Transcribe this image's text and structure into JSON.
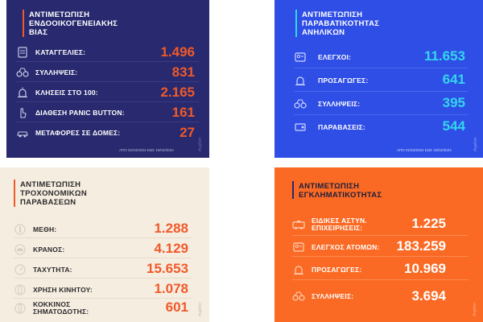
{
  "colors": {
    "navy": "#28296e",
    "blue": "#2f4ee6",
    "cream": "#f6ede1",
    "orange": "#fa6a24",
    "value_orange": "#ef5a2a",
    "value_teal": "#33d6ee"
  },
  "watermark": "#upforr",
  "panels": [
    {
      "title_lines": [
        "ΑΝΤΙΜΕΤΩΠΙΣΗ",
        "ΕΝΔΟΟΙΚΟΓΕΝΕΙΑΚΗΣ",
        "ΒΙΑΣ"
      ],
      "date": "ΑΠΟ 01/04/2024 ΕΩΣ 15/04/2024",
      "items": [
        {
          "label": "ΚΑΤΑΓΓΕΛΙΕΣ:",
          "value": "1.496",
          "icon": "clipboard-icon"
        },
        {
          "label": "ΣΥΛΛΗΨΕΙΣ:",
          "value": "831",
          "icon": "handcuffs-icon"
        },
        {
          "label": "ΚΛΗΣΕΙΣ ΣΤΟ 100:",
          "value": "2.165",
          "icon": "siren-icon"
        },
        {
          "label": "ΔΙΑΘΕΣΗ PANIC BUTTON:",
          "value": "161",
          "icon": "hand-pointer-icon"
        },
        {
          "label": "ΜΕΤΑΦΟΡΕΣ ΣΕ ΔΟΜΕΣ:",
          "value": "27",
          "icon": "car-icon"
        }
      ]
    },
    {
      "title_lines": [
        "ΑΝΤΙΜΕΤΩΠΙΣΗ",
        "ΠΑΡΑΒΑΤΙΚΟΤΗΤΑΣ",
        "ΑΝΗΛΙΚΩΝ"
      ],
      "date": "ΑΠΟ 01/04/2024 ΕΩΣ 15/04/2024",
      "items": [
        {
          "label": "ΕΛΕΓΧΟΙ:",
          "value": "11.653",
          "icon": "id-card-icon"
        },
        {
          "label": "ΠΡΟΣΑΓΩΓΕΣ:",
          "value": "641",
          "icon": "siren-icon"
        },
        {
          "label": "ΣΥΛΛΗΨΕΙΣ:",
          "value": "395",
          "icon": "handcuffs-icon"
        },
        {
          "label": "ΠΑΡΑΒΑΣΕΙΣ:",
          "value": "544",
          "icon": "ticket-icon"
        }
      ]
    },
    {
      "title_lines": [
        "ΑΝΤΙΜΕΤΩΠΙΣΗ",
        "ΤΡΟΧΟΝΟΜΙΚΩΝ",
        "ΠΑΡΑΒΑΣΕΩΝ"
      ],
      "items": [
        {
          "label_lines": [
            "ΜΕΘΗ:"
          ],
          "value": "1.288",
          "icon": "bottle-icon"
        },
        {
          "label_lines": [
            "ΚΡΑΝΟΣ:"
          ],
          "value": "4.129",
          "icon": "helmet-icon"
        },
        {
          "label_lines": [
            "ΤΑΧΥΤΗΤΑ:"
          ],
          "value": "15.653",
          "icon": "speedometer-icon"
        },
        {
          "label_lines": [
            "ΧΡΗΣΗ ΚΙΝΗΤΟΥ:"
          ],
          "value": "1.078",
          "icon": "phone-icon"
        },
        {
          "label_lines": [
            "ΚΟΚΚΙΝΟΣ",
            "ΣΗΜΑΤΟΔΟΤΗΣ:"
          ],
          "value": "601",
          "icon": "traffic-light-icon"
        }
      ]
    },
    {
      "title_lines": [
        "ΑΝΤΙΜΕΤΩΠΙΣΗ",
        "ΕΓΚΛΗΜΑΤΙΚΟΤΗΤΑΣ"
      ],
      "items": [
        {
          "label_lines": [
            "ΕΙΔΙΚΕΣ ΑΣΤΥΝ.",
            "ΕΠΙΧΕΙΡΗΣΕΙΣ:"
          ],
          "value": "1.225",
          "icon": "police-van-icon"
        },
        {
          "label_lines": [
            "ΕΛΕΓΧΟΣ ΑΤΟΜΩΝ:"
          ],
          "value": "183.259",
          "icon": "id-card-icon"
        },
        {
          "label_lines": [
            "ΠΡΟΣΑΓΩΓΕΣ:"
          ],
          "value": "10.969",
          "icon": "siren-icon"
        },
        {
          "label_lines": [
            "ΣΥΛΛΗΨΕΙΣ:"
          ],
          "value": "3.694",
          "icon": "handcuffs-icon"
        }
      ]
    }
  ]
}
